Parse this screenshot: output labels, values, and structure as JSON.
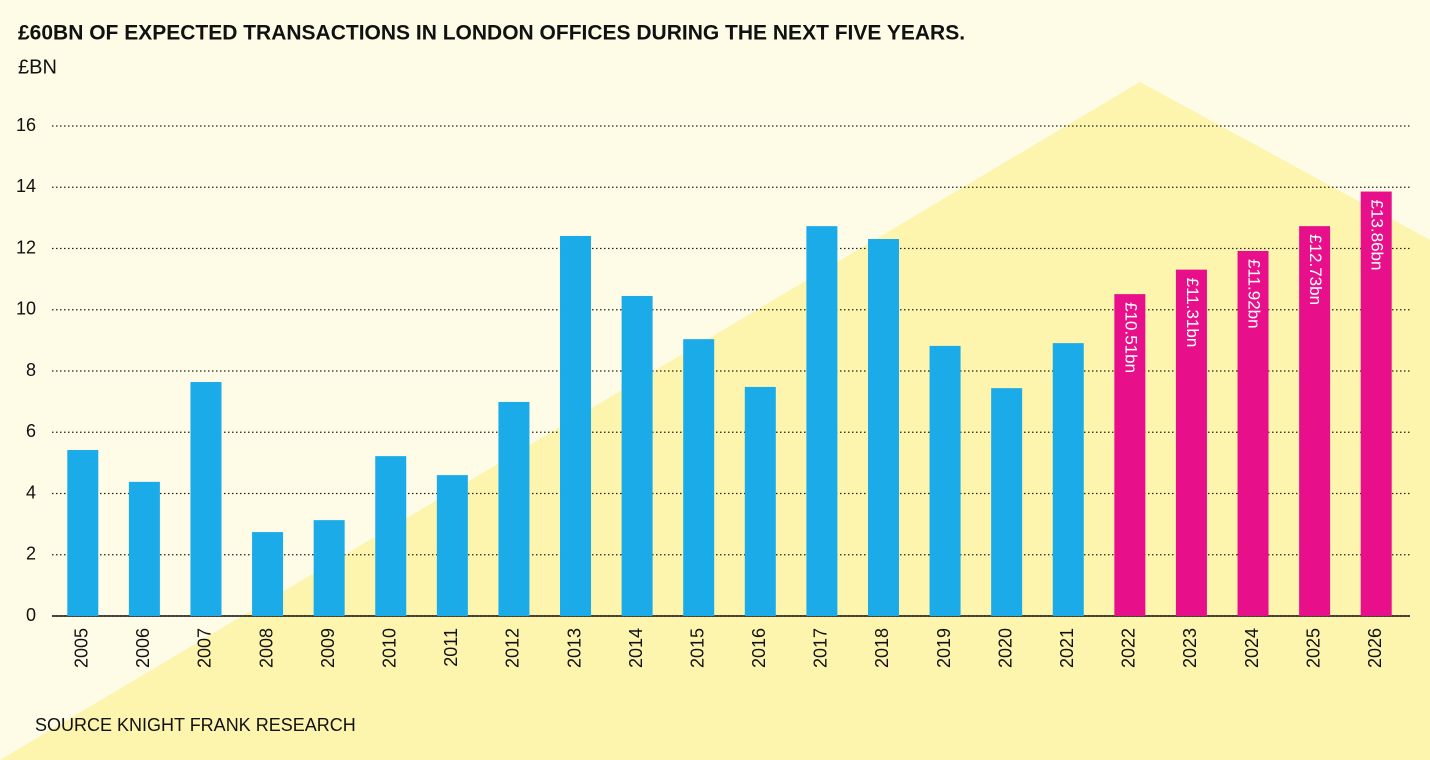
{
  "chart_data": {
    "type": "bar",
    "title": "£60BN OF EXPECTED TRANSACTIONS IN LONDON OFFICES DURING THE NEXT FIVE YEARS.",
    "y_label": "£BN",
    "source": "SOURCE KNIGHT FRANK RESEARCH",
    "categories": [
      "2005",
      "2006",
      "2007",
      "2008",
      "2009",
      "2010",
      "2011",
      "2012",
      "2013",
      "2014",
      "2015",
      "2016",
      "2017",
      "2018",
      "2019",
      "2020",
      "2021",
      "2022",
      "2023",
      "2024",
      "2025",
      "2026"
    ],
    "values": [
      5.42,
      4.38,
      7.64,
      2.74,
      3.13,
      5.22,
      4.6,
      6.99,
      12.41,
      10.45,
      9.04,
      7.48,
      12.73,
      12.31,
      8.82,
      7.44,
      8.91,
      10.51,
      11.31,
      11.92,
      12.73,
      13.86
    ],
    "value_labels": [
      null,
      null,
      null,
      null,
      null,
      null,
      null,
      null,
      null,
      null,
      null,
      null,
      null,
      null,
      null,
      null,
      null,
      "£10.51bn",
      "£11.31bn",
      "£11.92bn",
      "£12.73bn",
      "£13.86bn"
    ],
    "colors": [
      "#1aabe8",
      "#1aabe8",
      "#1aabe8",
      "#1aabe8",
      "#1aabe8",
      "#1aabe8",
      "#1aabe8",
      "#1aabe8",
      "#1aabe8",
      "#1aabe8",
      "#1aabe8",
      "#1aabe8",
      "#1aabe8",
      "#1aabe8",
      "#1aabe8",
      "#1aabe8",
      "#1aabe8",
      "#e8108a",
      "#e8108a",
      "#e8108a",
      "#e8108a",
      "#e8108a"
    ],
    "ylim": [
      0,
      16
    ],
    "yticks": [
      0,
      2,
      4,
      6,
      8,
      10,
      12,
      14,
      16
    ],
    "grid": true
  }
}
